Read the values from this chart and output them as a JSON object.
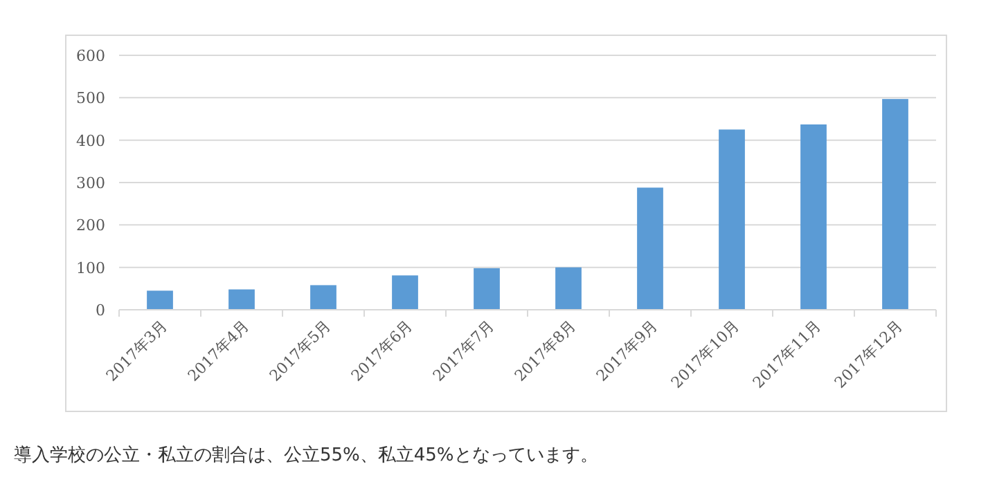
{
  "chart_data": {
    "type": "bar",
    "categories": [
      "2017年3月",
      "2017年4月",
      "2017年5月",
      "2017年6月",
      "2017年7月",
      "2017年8月",
      "2017年9月",
      "2017年10月",
      "2017年11月",
      "2017年12月"
    ],
    "values": [
      45,
      48,
      58,
      81,
      98,
      100,
      288,
      425,
      437,
      497
    ],
    "color": "#5b9bd5",
    "ylim": [
      0,
      600
    ],
    "yticks": [
      0,
      100,
      200,
      300,
      400,
      500,
      600
    ],
    "grid": "y",
    "annotations": [
      "導入学校の公立・私立の割合は、公立55%、私立45%となっています。"
    ]
  }
}
